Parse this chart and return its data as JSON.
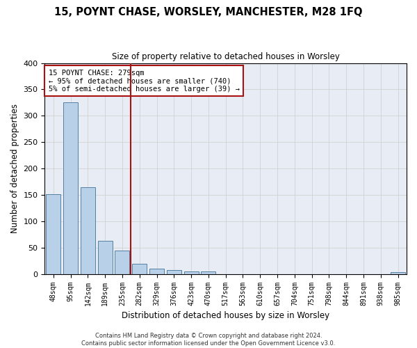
{
  "title": "15, POYNT CHASE, WORSLEY, MANCHESTER, M28 1FQ",
  "subtitle": "Size of property relative to detached houses in Worsley",
  "xlabel": "Distribution of detached houses by size in Worsley",
  "ylabel": "Number of detached properties",
  "bins": [
    "48sqm",
    "95sqm",
    "142sqm",
    "189sqm",
    "235sqm",
    "282sqm",
    "329sqm",
    "376sqm",
    "423sqm",
    "470sqm",
    "517sqm",
    "563sqm",
    "610sqm",
    "657sqm",
    "704sqm",
    "751sqm",
    "798sqm",
    "844sqm",
    "891sqm",
    "938sqm",
    "985sqm"
  ],
  "values": [
    152,
    326,
    164,
    63,
    44,
    20,
    10,
    7,
    5,
    5,
    0,
    0,
    0,
    0,
    0,
    0,
    0,
    0,
    0,
    0,
    4
  ],
  "bar_color": "#b8d0e8",
  "bar_edge_color": "#5580a0",
  "grid_color": "#cccccc",
  "bg_color": "#e8edf5",
  "vline_color": "#aa1111",
  "annotation_text": "15 POYNT CHASE: 279sqm\n← 95% of detached houses are smaller (740)\n5% of semi-detached houses are larger (39) →",
  "annotation_box_edge": "#aa1111",
  "footer": "Contains HM Land Registry data © Crown copyright and database right 2024.\nContains public sector information licensed under the Open Government Licence v3.0.",
  "ylim": [
    0,
    400
  ],
  "yticks": [
    0,
    50,
    100,
    150,
    200,
    250,
    300,
    350,
    400
  ]
}
